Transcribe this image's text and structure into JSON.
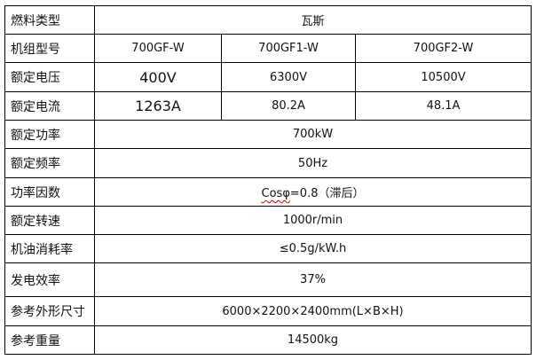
{
  "fuel_type": {
    "label": "燃料类型",
    "value": "瓦斯"
  },
  "model": {
    "label": "机组型号",
    "values": [
      "700GF-W",
      "700GF1-W",
      "700GF2-W"
    ]
  },
  "rated_voltage": {
    "label": "额定电压",
    "values": [
      "400V",
      "6300V",
      "10500V"
    ]
  },
  "rated_current": {
    "label": "额定电流",
    "values": [
      "1263A",
      "80.2A",
      "48.1A"
    ]
  },
  "rows": [
    {
      "label": "额定功率",
      "value": "700kW"
    },
    {
      "label": "额定频率",
      "value": "50Hz"
    },
    {
      "label": "功率因数",
      "value_prefix": "Cosφ",
      "value_rest": "=0.8（滞后）"
    },
    {
      "label": "额定转速",
      "value": "1000r/min"
    },
    {
      "label": "机油消耗率",
      "value": "≤0.5g/kW.h"
    },
    {
      "label": "发电效率",
      "value": "37%"
    },
    {
      "label": "参考外形尺寸",
      "value": "6000×2200×2400mm(L×B×H)"
    },
    {
      "label": "参考重量",
      "value": "14500kg"
    }
  ]
}
